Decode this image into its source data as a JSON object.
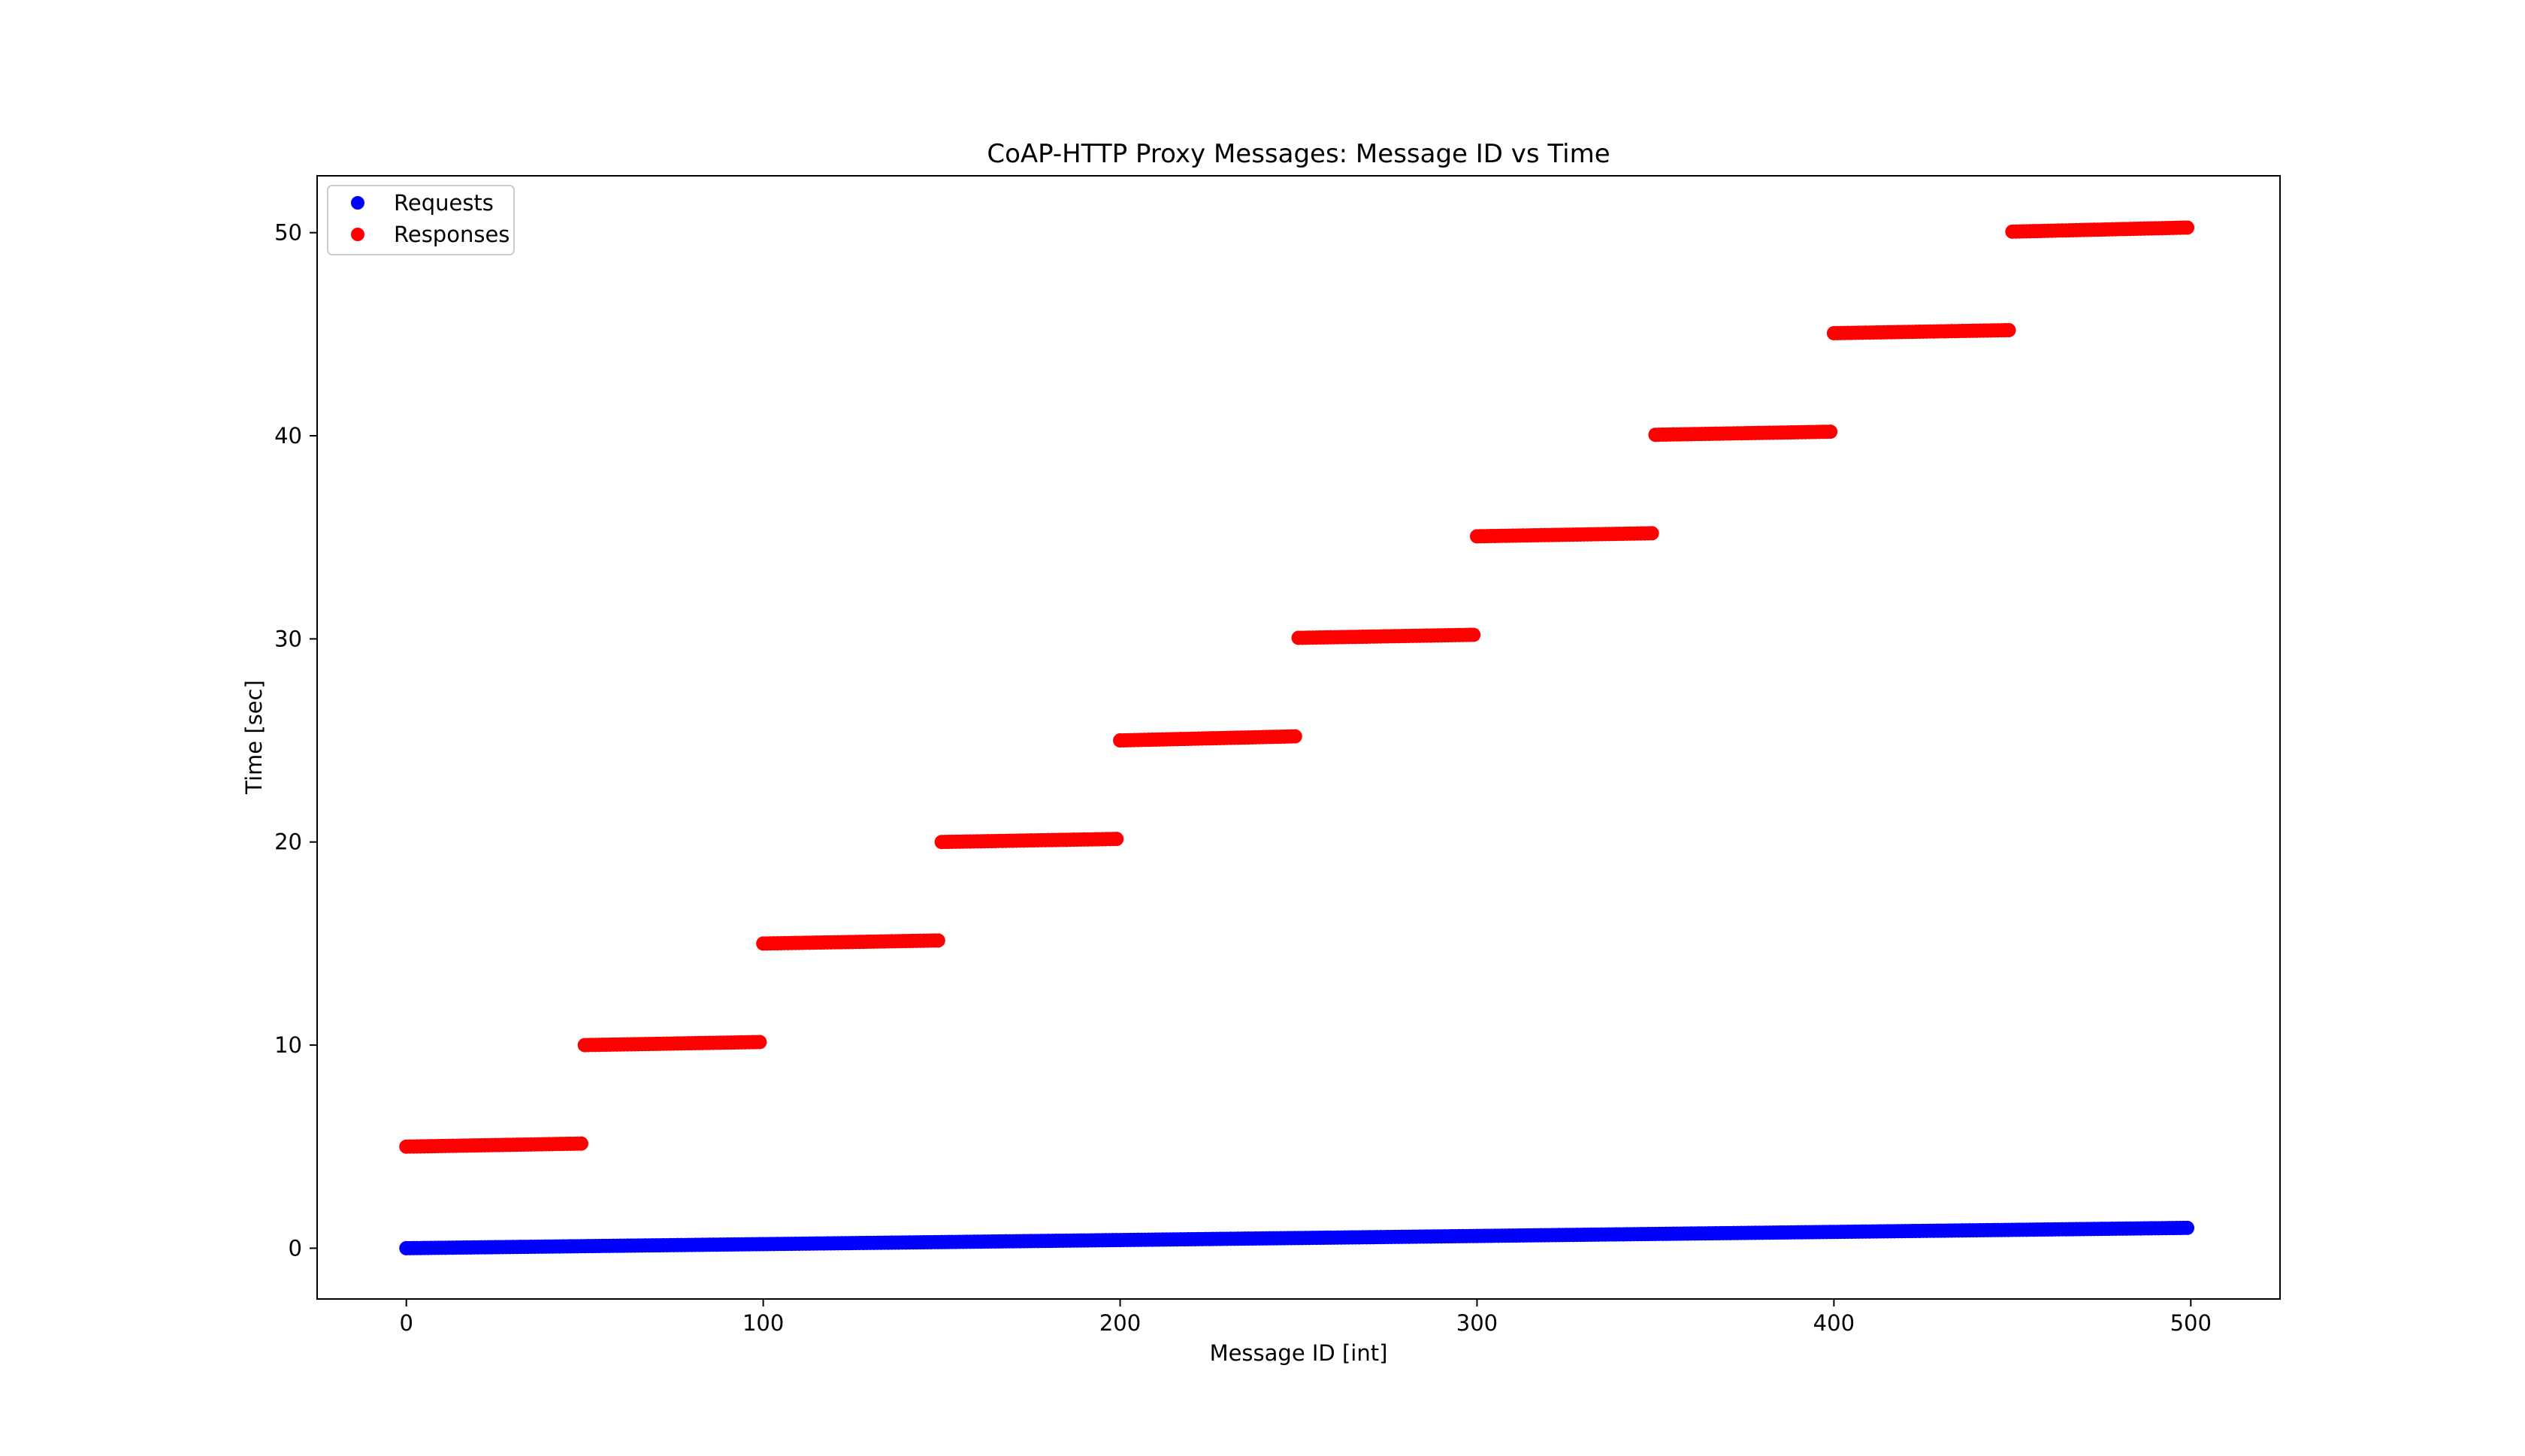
{
  "chart_data": {
    "type": "scatter",
    "title": "CoAP-HTTP Proxy Messages: Message ID vs Time",
    "xlabel": "Message ID [int]",
    "ylabel": "Time [sec]",
    "xlim": [
      -25,
      525
    ],
    "ylim": [
      -2.5,
      52.8
    ],
    "xticks": [
      0,
      100,
      200,
      300,
      400,
      500
    ],
    "yticks": [
      0,
      10,
      20,
      30,
      40,
      50
    ],
    "grid": false,
    "legend_position": "top-left",
    "series": [
      {
        "name": "Requests",
        "color": "#0000ff",
        "x_range": [
          0,
          499
        ],
        "y_start": 0.0,
        "y_end": 1.0
      },
      {
        "name": "Responses",
        "color": "#ff0000",
        "segments": [
          {
            "x": [
              0,
              49
            ],
            "y": [
              5.0,
              5.15
            ]
          },
          {
            "x": [
              50,
              99
            ],
            "y": [
              10.0,
              10.15
            ]
          },
          {
            "x": [
              100,
              149
            ],
            "y": [
              15.0,
              15.15
            ]
          },
          {
            "x": [
              150,
              199
            ],
            "y": [
              20.0,
              20.15
            ]
          },
          {
            "x": [
              200,
              249
            ],
            "y": [
              25.0,
              25.2
            ]
          },
          {
            "x": [
              250,
              299
            ],
            "y": [
              30.05,
              30.2
            ]
          },
          {
            "x": [
              300,
              349
            ],
            "y": [
              35.05,
              35.2
            ]
          },
          {
            "x": [
              350,
              399
            ],
            "y": [
              40.05,
              40.2
            ]
          },
          {
            "x": [
              400,
              449
            ],
            "y": [
              45.05,
              45.2
            ]
          },
          {
            "x": [
              450,
              499
            ],
            "y": [
              50.05,
              50.25
            ]
          }
        ]
      }
    ]
  }
}
